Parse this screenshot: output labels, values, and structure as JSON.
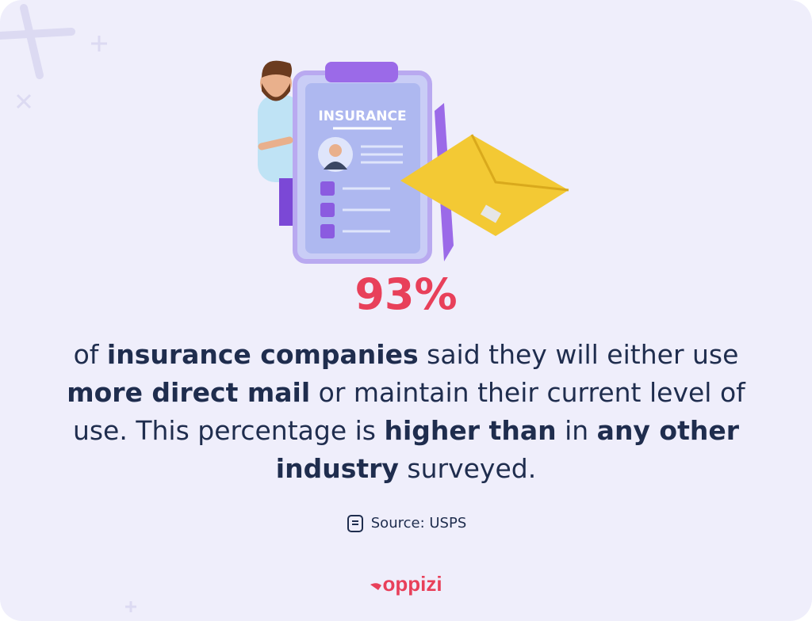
{
  "illustration": {
    "label": "INSURANCE"
  },
  "stat": "93%",
  "body": [
    {
      "text": "of ",
      "bold": false
    },
    {
      "text": "insurance companies",
      "bold": true
    },
    {
      "text": " said they will either use ",
      "bold": false
    },
    {
      "text": "more direct mail",
      "bold": true
    },
    {
      "text": " or maintain their current level of use. This percentage is ",
      "bold": false
    },
    {
      "text": "higher than",
      "bold": true
    },
    {
      "text": " in ",
      "bold": false
    },
    {
      "text": "any other industry",
      "bold": true
    },
    {
      "text": " surveyed.",
      "bold": false
    }
  ],
  "source": "Source: USPS",
  "brand": "oppizi"
}
